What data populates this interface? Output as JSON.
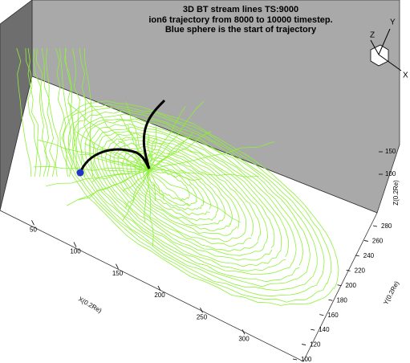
{
  "chart_data": {
    "type": "streamlines-3d",
    "title": "3D BT stream lines TS:9000",
    "subtitle": [
      "ion6 trajectory from 8000 to 10000 timestep.",
      "Blue sphere is the start of trajectory"
    ],
    "xlabel": "X(0.2Re)",
    "ylabel": "Y(0.2Re)",
    "zlabel": "Z(0.2Re)",
    "xlim": [
      20,
      360
    ],
    "xticks": [
      50,
      100,
      150,
      200,
      250,
      300
    ],
    "ylim": [
      100,
      280
    ],
    "yticks": [
      100,
      120,
      140,
      160,
      180,
      200,
      220,
      240,
      260,
      280
    ],
    "zlim": [
      50,
      200
    ],
    "zticks": [
      100,
      150
    ],
    "orientation_labels": [
      "Z",
      "Y",
      "X"
    ]
  }
}
